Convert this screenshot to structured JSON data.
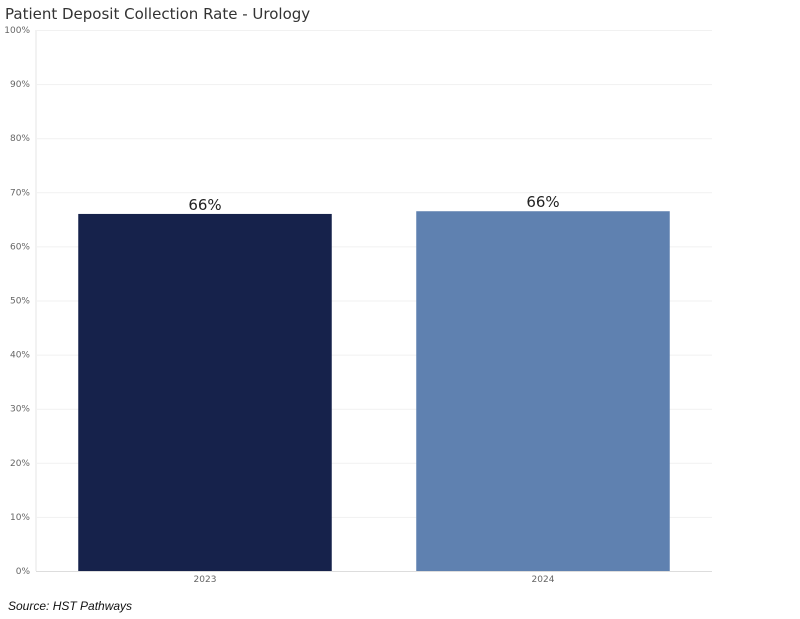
{
  "chart_data": {
    "type": "bar",
    "title": "Patient Deposit Collection Rate - Urology",
    "categories": [
      "2023",
      "2024"
    ],
    "values": [
      66,
      66.5
    ],
    "data_labels": [
      "66%",
      "66%"
    ],
    "ylim": [
      0,
      100
    ],
    "yticks": [
      "0%",
      "10%",
      "20%",
      "30%",
      "40%",
      "50%",
      "60%",
      "70%",
      "80%",
      "90%",
      "100%"
    ],
    "xlabel": "",
    "ylabel": "",
    "grid": true,
    "colors": [
      "#16224b",
      "#5f81b0"
    ]
  },
  "footer": {
    "source": "Source: HST Pathways"
  }
}
